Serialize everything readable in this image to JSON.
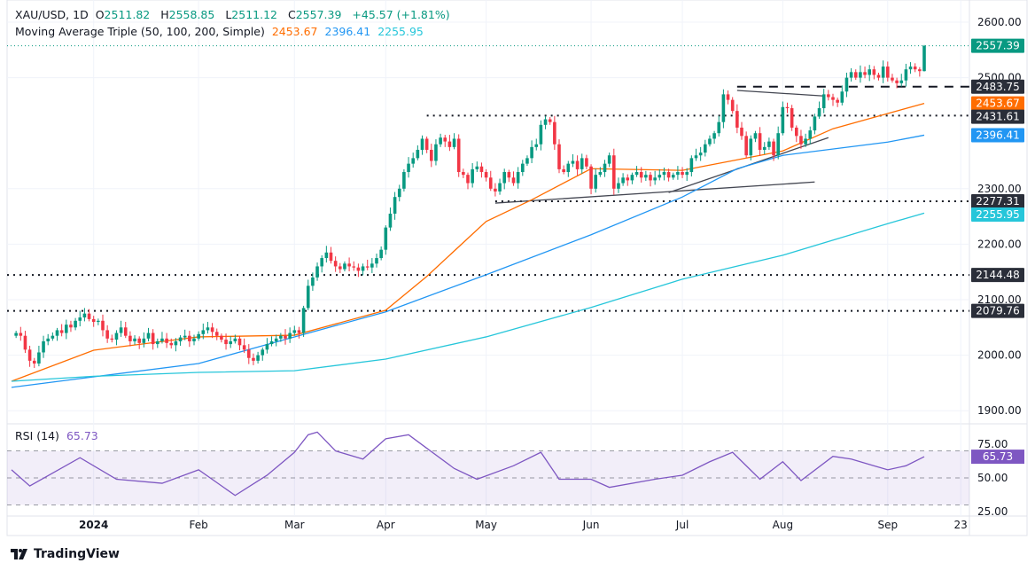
{
  "legend": {
    "symbol": "XAU/USD, 1D",
    "open_label": "O",
    "open": "2511.82",
    "high_label": "H",
    "high": "2558.85",
    "low_label": "L",
    "low": "2511.12",
    "close_label": "C",
    "close": "2557.39",
    "change": "+45.57 (+1.81%)",
    "ma_title": "Moving Average Triple (50, 100, 200, Simple)",
    "ma50": "2453.67",
    "ma100": "2396.41",
    "ma200": "2255.95",
    "rsi_title": "RSI (14)",
    "rsi_value": "65.73"
  },
  "footer": {
    "brand": "TradingView"
  },
  "colors": {
    "up": "#089981",
    "down": "#F23645",
    "ma50": "#FF6D00",
    "ma100": "#2196F3",
    "ma200": "#26C6DA",
    "rsi": "#7E57C2",
    "label_dark": "#2A2E39"
  },
  "chart_data": {
    "type": "candlestick",
    "title": "XAU/USD, 1D",
    "ylim": [
      1870,
      2630
    ],
    "y_ticks": [
      "2600.00",
      "2500.00",
      "2300.00",
      "2200.00",
      "2100.00",
      "2000.00",
      "1900.00"
    ],
    "y_tick_values": [
      2600,
      2500,
      2300,
      2200,
      2100,
      2000,
      1900
    ],
    "x_ticks": [
      {
        "label": "2024",
        "bar": 18
      },
      {
        "label": "Feb",
        "bar": 41
      },
      {
        "label": "Mar",
        "bar": 62
      },
      {
        "label": "Apr",
        "bar": 82
      },
      {
        "label": "May",
        "bar": 104
      },
      {
        "label": "Jun",
        "bar": 127
      },
      {
        "label": "Jul",
        "bar": 147
      },
      {
        "label": "Aug",
        "bar": 169
      },
      {
        "label": "Sep",
        "bar": 192
      },
      {
        "label": "23",
        "bar": 208
      }
    ],
    "closes": [
      2040,
      2035,
      2010,
      1990,
      1985,
      2005,
      2025,
      2030,
      2035,
      2045,
      2040,
      2055,
      2050,
      2062,
      2068,
      2075,
      2065,
      2060,
      2062,
      2045,
      2030,
      2028,
      2040,
      2050,
      2035,
      2025,
      2030,
      2022,
      2030,
      2040,
      2020,
      2025,
      2030,
      2022,
      2018,
      2025,
      2032,
      2035,
      2025,
      2030,
      2038,
      2045,
      2050,
      2042,
      2035,
      2028,
      2020,
      2025,
      2030,
      2018,
      2010,
      1995,
      1990,
      2000,
      2010,
      2020,
      2025,
      2030,
      2035,
      2030,
      2040,
      2045,
      2040,
      2085,
      2125,
      2140,
      2160,
      2175,
      2185,
      2170,
      2160,
      2155,
      2165,
      2160,
      2158,
      2152,
      2160,
      2158,
      2165,
      2175,
      2190,
      2230,
      2255,
      2285,
      2300,
      2330,
      2345,
      2355,
      2370,
      2390,
      2370,
      2350,
      2380,
      2392,
      2385,
      2375,
      2390,
      2330,
      2325,
      2310,
      2335,
      2340,
      2330,
      2320,
      2300,
      2295,
      2310,
      2330,
      2320,
      2310,
      2330,
      2345,
      2355,
      2375,
      2380,
      2415,
      2425,
      2420,
      2380,
      2335,
      2330,
      2345,
      2350,
      2335,
      2355,
      2340,
      2300,
      2325,
      2330,
      2345,
      2360,
      2300,
      2310,
      2320,
      2315,
      2325,
      2330,
      2320,
      2325,
      2315,
      2320,
      2325,
      2330,
      2320,
      2325,
      2330,
      2325,
      2330,
      2355,
      2360,
      2365,
      2380,
      2390,
      2400,
      2420,
      2470,
      2460,
      2440,
      2410,
      2395,
      2360,
      2390,
      2400,
      2370,
      2375,
      2385,
      2360,
      2400,
      2447,
      2445,
      2410,
      2395,
      2380,
      2390,
      2405,
      2430,
      2445,
      2470,
      2465,
      2460,
      2455,
      2475,
      2500,
      2510,
      2500,
      2510,
      2505,
      2515,
      2505,
      2500,
      2520,
      2500,
      2495,
      2490,
      2495,
      2515,
      2520,
      2515,
      2511.82,
      2557.39
    ],
    "last_bar": {
      "open": 2511.82,
      "high": 2558.85,
      "low": 2511.12,
      "close": 2557.39
    },
    "moving_averages": [
      {
        "name": "MA50",
        "value": "2453.67",
        "points": [
          [
            0,
            1953
          ],
          [
            18,
            2009
          ],
          [
            41,
            2033
          ],
          [
            62,
            2036
          ],
          [
            82,
            2081
          ],
          [
            91,
            2142
          ],
          [
            104,
            2241
          ],
          [
            114,
            2280
          ],
          [
            127,
            2336
          ],
          [
            147,
            2333
          ],
          [
            159,
            2352
          ],
          [
            169,
            2368
          ],
          [
            180,
            2408
          ],
          [
            200,
            2453.67
          ]
        ]
      },
      {
        "name": "MA100",
        "value": "2396.41",
        "points": [
          [
            0,
            1942
          ],
          [
            18,
            1961
          ],
          [
            41,
            1985
          ],
          [
            62,
            2033
          ],
          [
            82,
            2078
          ],
          [
            104,
            2145
          ],
          [
            127,
            2217
          ],
          [
            147,
            2285
          ],
          [
            159,
            2336
          ],
          [
            169,
            2360
          ],
          [
            192,
            2384
          ],
          [
            200,
            2396.41
          ]
        ]
      },
      {
        "name": "MA200",
        "value": "2255.95",
        "points": [
          [
            0,
            1953
          ],
          [
            18,
            1962
          ],
          [
            41,
            1969
          ],
          [
            62,
            1972
          ],
          [
            82,
            1993
          ],
          [
            104,
            2033
          ],
          [
            127,
            2086
          ],
          [
            147,
            2137
          ],
          [
            169,
            2180
          ],
          [
            192,
            2237
          ],
          [
            200,
            2255.95
          ]
        ]
      }
    ],
    "levels": [
      {
        "value": 2483.75,
        "label": "2483.75",
        "style": "dashed",
        "from_bar": 159
      },
      {
        "value": 2431.61,
        "label": "2431.61",
        "style": "dotted",
        "from_bar": 91
      },
      {
        "value": 2277.31,
        "label": "2277.31",
        "style": "dotted",
        "from_bar": 106
      },
      {
        "value": 2144.48,
        "label": "2144.48",
        "style": "dotted",
        "from_bar": -1
      },
      {
        "value": 2079.76,
        "label": "2079.76",
        "style": "dotted",
        "from_bar": -1
      }
    ],
    "trendlines": [
      [
        [
          106,
          2274
        ],
        [
          176,
          2312
        ]
      ],
      [
        [
          144,
          2293
        ],
        [
          179,
          2392
        ]
      ],
      [
        [
          159,
          2477
        ],
        [
          178,
          2467
        ]
      ]
    ],
    "rsi": {
      "title": "RSI (14)",
      "levels": [
        75,
        50,
        25
      ],
      "tick_labels": [
        "75.00",
        "50.00",
        "25.00"
      ],
      "ylim": [
        15,
        90
      ],
      "points": [
        [
          0,
          56
        ],
        [
          4,
          44
        ],
        [
          15,
          65
        ],
        [
          23,
          49
        ],
        [
          33,
          46
        ],
        [
          41,
          56
        ],
        [
          49,
          37
        ],
        [
          56,
          52
        ],
        [
          62,
          69
        ],
        [
          65,
          82
        ],
        [
          67,
          84
        ],
        [
          71,
          70
        ],
        [
          77,
          64
        ],
        [
          82,
          79
        ],
        [
          87,
          82
        ],
        [
          91,
          72
        ],
        [
          97,
          57
        ],
        [
          102,
          49
        ],
        [
          110,
          59
        ],
        [
          116,
          69
        ],
        [
          120,
          49
        ],
        [
          127,
          49
        ],
        [
          131,
          43
        ],
        [
          141,
          49
        ],
        [
          147,
          52
        ],
        [
          153,
          62
        ],
        [
          158,
          69
        ],
        [
          164,
          49
        ],
        [
          169,
          62
        ],
        [
          173,
          48
        ],
        [
          180,
          66
        ],
        [
          184,
          64
        ],
        [
          189,
          59
        ],
        [
          192,
          56
        ],
        [
          196,
          59
        ],
        [
          200,
          65.73
        ]
      ]
    }
  }
}
